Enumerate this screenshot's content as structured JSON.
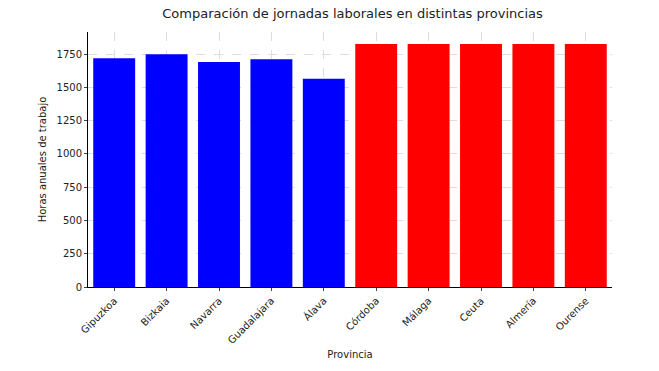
{
  "chart_data": {
    "type": "bar",
    "title": "Comparación de jornadas laborales en distintas provincias",
    "x_label": "Provincia",
    "y_label": "Horas anuales de trabajo",
    "categories": [
      "Gipuzkoa",
      "Bizkaia",
      "Navarra",
      "Guadalajara",
      "Álava",
      "Córdoba",
      "Málaga",
      "Ceuta",
      "Almería",
      "Ourense"
    ],
    "values": [
      1720,
      1750,
      1692,
      1712,
      1565,
      1826,
      1826,
      1826,
      1826,
      1826
    ],
    "colors": [
      "#0000ff",
      "#0000ff",
      "#0000ff",
      "#0000ff",
      "#0000ff",
      "#ff0000",
      "#ff0000",
      "#ff0000",
      "#ff0000",
      "#ff0000"
    ],
    "ylim": [
      0,
      1917
    ],
    "yticks": [
      0,
      250,
      500,
      750,
      1000,
      1250,
      1500,
      1750
    ],
    "grid": true
  }
}
